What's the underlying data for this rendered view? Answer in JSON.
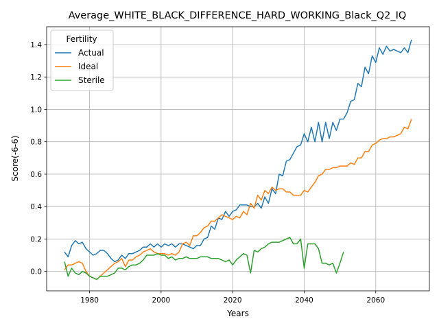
{
  "chart_data": {
    "type": "line",
    "title": "Average_WHITE_BLACK_DIFFERENCE_HARD_WORKING_Black_Q2_IQ",
    "xlabel": "Years",
    "ylabel": "Score(-6-6)",
    "xlim": [
      1968,
      2075
    ],
    "ylim": [
      -0.12,
      1.51
    ],
    "xticks": [
      1980,
      2000,
      2020,
      2040,
      2060
    ],
    "yticks": [
      0.0,
      0.2,
      0.4,
      0.6,
      0.8,
      1.0,
      1.2,
      1.4
    ],
    "ytick_labels": [
      "0.0",
      "0.2",
      "0.4",
      "0.6",
      "0.8",
      "1.0",
      "1.2",
      "1.4"
    ],
    "grid": true,
    "legend": {
      "title": "Fertility",
      "position": "top-left"
    },
    "series": [
      {
        "name": "Actual",
        "color": "#1f77b4",
        "x": [
          1973,
          1974,
          1975,
          1976,
          1977,
          1978,
          1979,
          1980,
          1981,
          1982,
          1983,
          1984,
          1985,
          1986,
          1987,
          1988,
          1989,
          1990,
          1991,
          1992,
          1993,
          1994,
          1995,
          1996,
          1997,
          1998,
          1999,
          2000,
          2001,
          2002,
          2003,
          2004,
          2005,
          2006,
          2007,
          2008,
          2009,
          2010,
          2011,
          2012,
          2013,
          2014,
          2015,
          2016,
          2017,
          2018,
          2019,
          2020,
          2021,
          2022,
          2023,
          2024,
          2025,
          2026,
          2027,
          2028,
          2029,
          2030,
          2031,
          2032,
          2033,
          2034,
          2035,
          2036,
          2037,
          2038,
          2039,
          2040,
          2041,
          2042,
          2043,
          2044,
          2045,
          2046,
          2047,
          2048,
          2049,
          2050,
          2051,
          2052,
          2053,
          2054,
          2055,
          2056,
          2057,
          2058,
          2059,
          2060,
          2061,
          2062,
          2063,
          2064,
          2065,
          2066,
          2067,
          2068,
          2069,
          2070
        ],
        "values": [
          0.12,
          0.09,
          0.16,
          0.19,
          0.17,
          0.18,
          0.14,
          0.12,
          0.1,
          0.11,
          0.13,
          0.13,
          0.11,
          0.08,
          0.06,
          0.07,
          0.1,
          0.08,
          0.11,
          0.11,
          0.12,
          0.13,
          0.15,
          0.15,
          0.17,
          0.15,
          0.17,
          0.15,
          0.17,
          0.16,
          0.17,
          0.15,
          0.17,
          0.17,
          0.16,
          0.15,
          0.14,
          0.16,
          0.16,
          0.2,
          0.21,
          0.28,
          0.26,
          0.33,
          0.32,
          0.37,
          0.34,
          0.37,
          0.38,
          0.41,
          0.41,
          0.41,
          0.4,
          0.4,
          0.42,
          0.39,
          0.46,
          0.42,
          0.51,
          0.48,
          0.6,
          0.59,
          0.68,
          0.69,
          0.73,
          0.77,
          0.78,
          0.85,
          0.8,
          0.89,
          0.8,
          0.92,
          0.8,
          0.92,
          0.82,
          0.92,
          0.87,
          0.94,
          0.94,
          0.98,
          1.05,
          1.06,
          1.16,
          1.14,
          1.26,
          1.22,
          1.33,
          1.29,
          1.38,
          1.34,
          1.39,
          1.36,
          1.37,
          1.36,
          1.35,
          1.38,
          1.35,
          1.43
        ]
      },
      {
        "name": "Ideal",
        "color": "#ff7f0e",
        "x": [
          1973,
          1974,
          1975,
          1976,
          1977,
          1978,
          1979,
          1980,
          1981,
          1982,
          1983,
          1984,
          1985,
          1986,
          1987,
          1988,
          1989,
          1990,
          1991,
          1992,
          1993,
          1994,
          1995,
          1996,
          1997,
          1998,
          1999,
          2000,
          2001,
          2002,
          2003,
          2004,
          2005,
          2006,
          2007,
          2008,
          2009,
          2010,
          2011,
          2012,
          2013,
          2014,
          2015,
          2016,
          2017,
          2018,
          2019,
          2020,
          2021,
          2022,
          2023,
          2024,
          2025,
          2026,
          2027,
          2028,
          2029,
          2030,
          2031,
          2032,
          2033,
          2034,
          2035,
          2036,
          2037,
          2038,
          2039,
          2040,
          2041,
          2042,
          2043,
          2044,
          2045,
          2046,
          2047,
          2048,
          2049,
          2050,
          2051,
          2052,
          2053,
          2054,
          2055,
          2056,
          2057,
          2058,
          2059,
          2060,
          2061,
          2062,
          2063,
          2064,
          2065,
          2066,
          2067,
          2068,
          2069,
          2070
        ],
        "values": [
          0.01,
          0.04,
          0.04,
          0.05,
          0.06,
          0.05,
          0.0,
          -0.03,
          -0.04,
          -0.05,
          -0.03,
          -0.01,
          0.01,
          0.03,
          0.05,
          0.06,
          0.08,
          0.03,
          0.07,
          0.07,
          0.09,
          0.1,
          0.12,
          0.13,
          0.14,
          0.12,
          0.11,
          0.11,
          0.11,
          0.1,
          0.11,
          0.1,
          0.12,
          0.17,
          0.18,
          0.16,
          0.22,
          0.22,
          0.24,
          0.27,
          0.28,
          0.31,
          0.31,
          0.33,
          0.35,
          0.34,
          0.33,
          0.32,
          0.34,
          0.33,
          0.37,
          0.35,
          0.42,
          0.39,
          0.47,
          0.44,
          0.5,
          0.48,
          0.52,
          0.5,
          0.51,
          0.51,
          0.49,
          0.49,
          0.47,
          0.47,
          0.47,
          0.5,
          0.49,
          0.52,
          0.55,
          0.59,
          0.6,
          0.63,
          0.63,
          0.64,
          0.64,
          0.65,
          0.65,
          0.65,
          0.67,
          0.66,
          0.7,
          0.7,
          0.74,
          0.74,
          0.78,
          0.79,
          0.81,
          0.82,
          0.82,
          0.83,
          0.83,
          0.84,
          0.85,
          0.89,
          0.88,
          0.94
        ]
      },
      {
        "name": "Sterile",
        "color": "#2ca02c",
        "x": [
          1973,
          1974,
          1975,
          1976,
          1977,
          1978,
          1979,
          1980,
          1981,
          1982,
          1983,
          1984,
          1985,
          1986,
          1987,
          1988,
          1989,
          1990,
          1991,
          1992,
          1993,
          1994,
          1995,
          1996,
          1997,
          1998,
          1999,
          2000,
          2001,
          2002,
          2003,
          2004,
          2005,
          2006,
          2007,
          2008,
          2009,
          2010,
          2011,
          2012,
          2013,
          2014,
          2015,
          2016,
          2017,
          2018,
          2019,
          2020,
          2021,
          2022,
          2023,
          2024,
          2025,
          2026,
          2027,
          2028,
          2029,
          2030,
          2031,
          2032,
          2033,
          2034,
          2035,
          2036,
          2037,
          2038,
          2039,
          2040,
          2041,
          2042,
          2043,
          2044,
          2045,
          2046,
          2047,
          2048,
          2049,
          2050,
          2051
        ],
        "values": [
          0.06,
          -0.03,
          0.02,
          -0.01,
          -0.02,
          0.0,
          -0.01,
          -0.03,
          -0.04,
          -0.05,
          -0.03,
          -0.03,
          -0.03,
          -0.02,
          -0.01,
          0.02,
          0.02,
          0.01,
          0.03,
          0.04,
          0.04,
          0.05,
          0.07,
          0.1,
          0.1,
          0.1,
          0.11,
          0.1,
          0.1,
          0.08,
          0.09,
          0.07,
          0.08,
          0.08,
          0.09,
          0.08,
          0.08,
          0.08,
          0.09,
          0.09,
          0.09,
          0.08,
          0.08,
          0.08,
          0.07,
          0.06,
          0.07,
          0.04,
          0.07,
          0.09,
          0.11,
          0.1,
          -0.01,
          0.13,
          0.12,
          0.14,
          0.15,
          0.17,
          0.18,
          0.18,
          0.18,
          0.19,
          0.2,
          0.21,
          0.17,
          0.17,
          0.2,
          0.02,
          0.17,
          0.17,
          0.17,
          0.14,
          0.05,
          0.05,
          0.04,
          0.05,
          -0.01,
          0.05,
          0.12
        ]
      }
    ]
  }
}
